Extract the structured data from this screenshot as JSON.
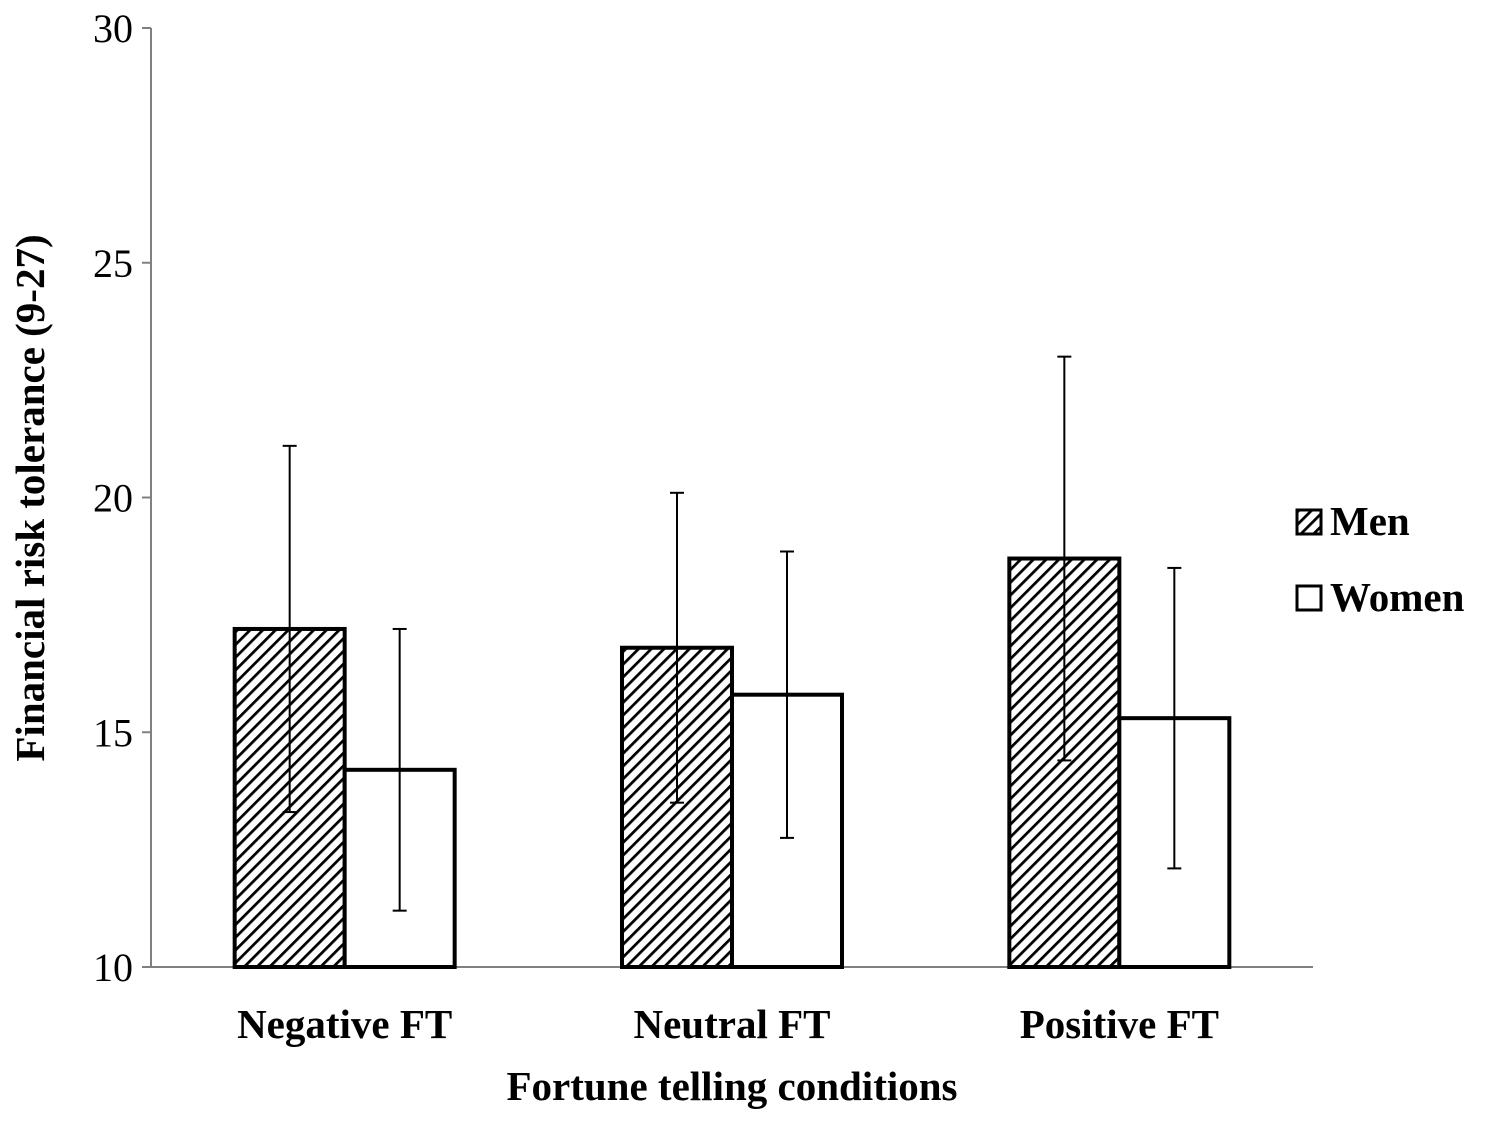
{
  "chart_data": {
    "type": "bar",
    "title": "",
    "xlabel": "Fortune telling conditions",
    "ylabel": "Financial risk tolerance (9-27)",
    "categories": [
      "Negative FT",
      "Neutral FT",
      "Positive FT"
    ],
    "ylim": [
      10,
      30
    ],
    "yticks": [
      10,
      15,
      20,
      25,
      30
    ],
    "grid": false,
    "legend_position": "right",
    "series": [
      {
        "name": "Men",
        "pattern": "diagonal-hatch",
        "values": [
          17.2,
          16.8,
          18.7
        ],
        "error": [
          3.9,
          3.3,
          4.3
        ]
      },
      {
        "name": "Women",
        "pattern": "solid-white",
        "values": [
          14.2,
          15.8,
          15.3
        ],
        "error": [
          3.0,
          3.05,
          3.2
        ]
      }
    ]
  },
  "colors": {
    "bar_stroke": "#000000",
    "hatch": "#000000",
    "women_fill": "#ffffff",
    "axis": "#808080"
  }
}
